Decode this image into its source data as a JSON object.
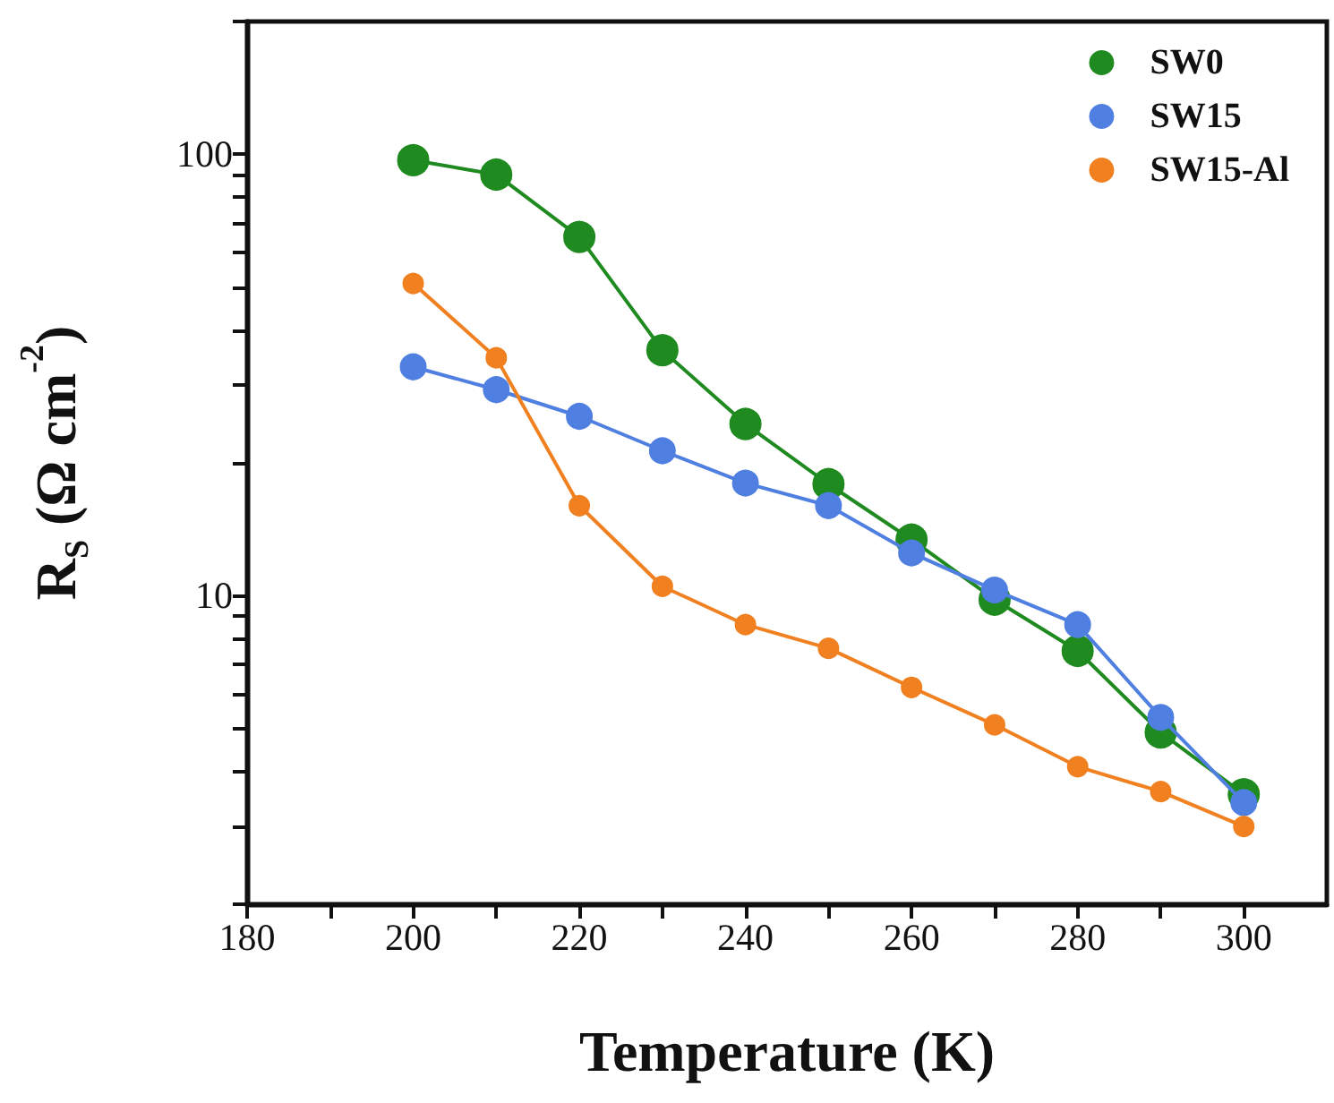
{
  "chart_data": {
    "type": "line",
    "xlabel": "Temperature (K)",
    "ylabel": "R$_{S}$ (Ω cm$^{-2}$)",
    "x": [
      200,
      210,
      220,
      230,
      240,
      250,
      260,
      270,
      280,
      290,
      300
    ],
    "series": [
      {
        "name": "SW0",
        "color": "#1f8a1f",
        "values": [
          97,
          90,
          65,
          36,
          24.5,
          17.9,
          13.4,
          9.8,
          7.5,
          4.9,
          3.55
        ]
      },
      {
        "name": "SW15",
        "color": "#4f7fe0",
        "values": [
          33,
          29.3,
          25.5,
          21.3,
          18,
          16,
          12.5,
          10.3,
          8.6,
          5.3,
          3.4
        ]
      },
      {
        "name": "SW15-Al",
        "color": "#f08020",
        "values": [
          51,
          34.6,
          16,
          10.5,
          8.6,
          7.6,
          6.2,
          5.1,
          4.1,
          3.6,
          3.0
        ]
      }
    ],
    "xlim": [
      180,
      310
    ],
    "xticks": [
      180,
      {
        "value": 190,
        "label": null
      },
      200,
      {
        "value": 210,
        "label": null
      },
      220,
      {
        "value": 230,
        "label": null
      },
      240,
      {
        "value": 250,
        "label": null
      },
      260,
      {
        "value": 270,
        "label": null
      },
      280,
      {
        "value": 290,
        "label": null
      },
      300
    ],
    "ylim": [
      2,
      200
    ],
    "yticks": [
      {
        "value": 2,
        "label": null
      },
      {
        "value": 3,
        "label": null
      },
      {
        "value": 4,
        "label": null
      },
      {
        "value": 5,
        "label": null
      },
      {
        "value": 6,
        "label": null
      },
      {
        "value": 7,
        "label": null
      },
      {
        "value": 8,
        "label": null
      },
      {
        "value": 9,
        "label": null
      },
      10,
      {
        "value": 20,
        "label": null
      },
      {
        "value": 30,
        "label": null
      },
      {
        "value": 40,
        "label": null
      },
      {
        "value": 50,
        "label": null
      },
      {
        "value": 60,
        "label": null
      },
      {
        "value": 70,
        "label": null
      },
      {
        "value": 80,
        "label": null
      },
      {
        "value": 90,
        "label": null
      },
      100,
      {
        "value": 200,
        "label": null
      }
    ],
    "log": "y",
    "grid": false,
    "legend": "top right",
    "marker": "circle",
    "line_style": "solid"
  }
}
